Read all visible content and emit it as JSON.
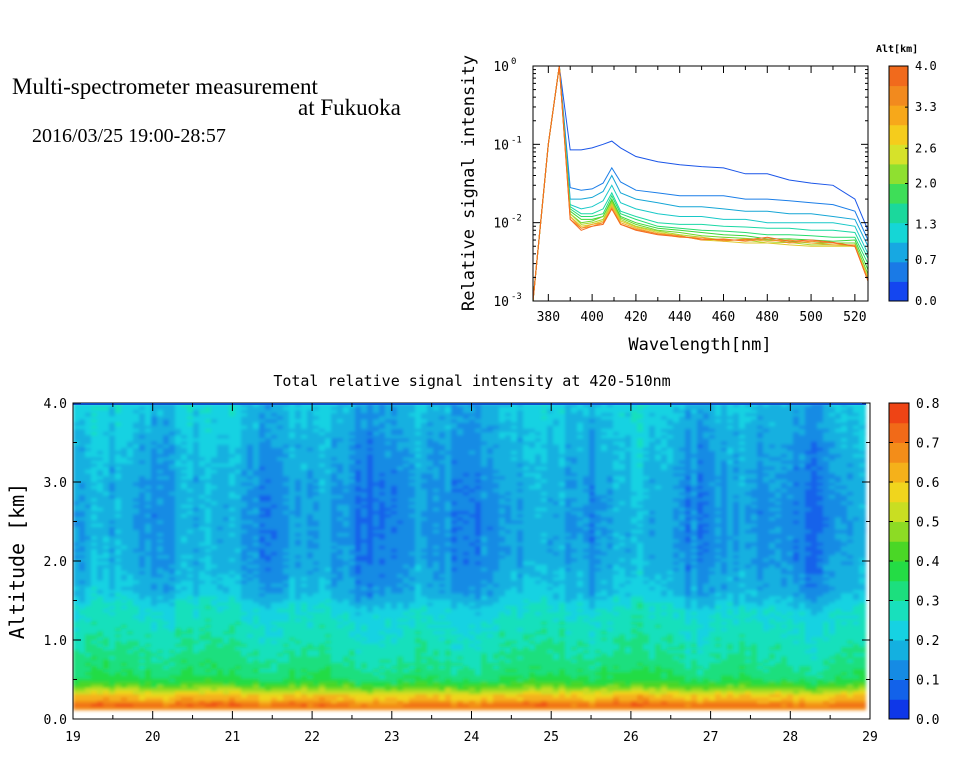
{
  "header": {
    "title_line1": "Multi-spectrometer measurement",
    "title_line2": "at Fukuoka",
    "datetime": "2016/03/25 19:00-28:57"
  },
  "chart_data": [
    {
      "type": "line",
      "title": "",
      "xlabel": "Wavelength[nm]",
      "ylabel": "Relative signal intensity",
      "xlim": [
        373,
        526
      ],
      "ylim": [
        0.001,
        1
      ],
      "yscale": "log",
      "xticks": [
        380,
        400,
        420,
        440,
        460,
        480,
        500,
        520
      ],
      "xtick_labels": [
        "380",
        "400",
        "420",
        "440",
        "460",
        "480",
        "500",
        "520"
      ],
      "ytick_labels": [
        {
          "base": "10",
          "exp": "-3"
        },
        {
          "base": "10",
          "exp": "-2"
        },
        {
          "base": "10",
          "exp": "-1"
        },
        {
          "base": "10",
          "exp": "0"
        }
      ],
      "x": [
        373,
        380,
        385,
        390,
        395,
        400,
        405,
        409,
        413,
        420,
        430,
        440,
        450,
        460,
        470,
        480,
        490,
        500,
        510,
        520,
        526
      ],
      "series": [
        {
          "alt": 0.0,
          "color": "#1a55e8",
          "values": [
            0.001,
            0.1,
            1.0,
            0.085,
            0.085,
            0.09,
            0.1,
            0.11,
            0.09,
            0.07,
            0.06,
            0.055,
            0.052,
            0.05,
            0.042,
            0.042,
            0.035,
            0.032,
            0.03,
            0.02,
            0.008
          ]
        },
        {
          "alt": 0.35,
          "color": "#1b7ee8",
          "values": [
            0.001,
            0.1,
            1.0,
            0.028,
            0.026,
            0.027,
            0.032,
            0.05,
            0.033,
            0.026,
            0.024,
            0.022,
            0.022,
            0.022,
            0.02,
            0.02,
            0.019,
            0.018,
            0.017,
            0.014,
            0.006
          ]
        },
        {
          "alt": 0.7,
          "color": "#16a6d6",
          "values": [
            0.001,
            0.1,
            1.0,
            0.02,
            0.02,
            0.021,
            0.025,
            0.04,
            0.024,
            0.02,
            0.018,
            0.016,
            0.016,
            0.015,
            0.014,
            0.014,
            0.013,
            0.013,
            0.012,
            0.011,
            0.005
          ]
        },
        {
          "alt": 1.0,
          "color": "#18c8c8",
          "values": [
            0.001,
            0.1,
            1.0,
            0.017,
            0.015,
            0.016,
            0.019,
            0.03,
            0.018,
            0.015,
            0.013,
            0.012,
            0.012,
            0.011,
            0.011,
            0.01,
            0.01,
            0.01,
            0.01,
            0.009,
            0.004
          ]
        },
        {
          "alt": 1.3,
          "color": "#1bd8a5",
          "values": [
            0.001,
            0.1,
            1.0,
            0.016,
            0.013,
            0.013,
            0.015,
            0.024,
            0.014,
            0.012,
            0.01,
            0.0095,
            0.0095,
            0.009,
            0.0088,
            0.0085,
            0.0085,
            0.008,
            0.008,
            0.0075,
            0.0035
          ]
        },
        {
          "alt": 1.65,
          "color": "#27dc6e",
          "values": [
            0.001,
            0.1,
            1.0,
            0.015,
            0.012,
            0.012,
            0.013,
            0.022,
            0.013,
            0.011,
            0.009,
            0.0085,
            0.008,
            0.0078,
            0.0075,
            0.007,
            0.007,
            0.0068,
            0.0065,
            0.0065,
            0.003
          ]
        },
        {
          "alt": 2.0,
          "color": "#3dd63a",
          "values": [
            0.001,
            0.1,
            1.0,
            0.014,
            0.011,
            0.011,
            0.012,
            0.02,
            0.012,
            0.01,
            0.0085,
            0.008,
            0.0075,
            0.007,
            0.0068,
            0.0062,
            0.0062,
            0.006,
            0.0058,
            0.006,
            0.0025
          ]
        },
        {
          "alt": 2.3,
          "color": "#6fd62a",
          "values": [
            0.001,
            0.1,
            1.0,
            0.013,
            0.01,
            0.0105,
            0.012,
            0.019,
            0.0115,
            0.0095,
            0.008,
            0.0075,
            0.0068,
            0.0065,
            0.0063,
            0.006,
            0.0058,
            0.0055,
            0.0055,
            0.0055,
            0.0022
          ]
        },
        {
          "alt": 2.65,
          "color": "#a8d82a",
          "values": [
            0.001,
            0.1,
            1.0,
            0.013,
            0.0095,
            0.01,
            0.011,
            0.018,
            0.011,
            0.009,
            0.0078,
            0.007,
            0.0065,
            0.006,
            0.006,
            0.0055,
            0.0056,
            0.0052,
            0.0052,
            0.005,
            0.002
          ]
        },
        {
          "alt": 3.0,
          "color": "#e0c92a",
          "values": [
            0.001,
            0.1,
            1.0,
            0.012,
            0.009,
            0.0095,
            0.0105,
            0.017,
            0.0105,
            0.0088,
            0.0075,
            0.0068,
            0.006,
            0.0058,
            0.0055,
            0.0055,
            0.0052,
            0.005,
            0.005,
            0.005,
            0.002
          ]
        },
        {
          "alt": 3.3,
          "color": "#f0a92a",
          "values": [
            0.001,
            0.1,
            1.0,
            0.012,
            0.0085,
            0.0095,
            0.01,
            0.016,
            0.01,
            0.0085,
            0.0072,
            0.0065,
            0.0065,
            0.0058,
            0.0062,
            0.0058,
            0.006,
            0.0055,
            0.0052,
            0.0052,
            0.0018
          ]
        },
        {
          "alt": 3.65,
          "color": "#f38a2a",
          "values": [
            0.001,
            0.1,
            1.0,
            0.011,
            0.0085,
            0.009,
            0.01,
            0.015,
            0.0095,
            0.0082,
            0.0072,
            0.0068,
            0.006,
            0.0062,
            0.0058,
            0.0062,
            0.0055,
            0.0058,
            0.0055,
            0.005,
            0.0018
          ]
        },
        {
          "alt": 4.0,
          "color": "#f46a20",
          "values": [
            0.001,
            0.1,
            1.0,
            0.011,
            0.008,
            0.009,
            0.0095,
            0.015,
            0.0095,
            0.008,
            0.007,
            0.0066,
            0.0062,
            0.006,
            0.006,
            0.0065,
            0.0058,
            0.006,
            0.0056,
            0.005,
            0.0018
          ]
        }
      ],
      "colorbar": {
        "label": "Alt[km]",
        "tick_labels": [
          "0.0",
          "0.7",
          "1.3",
          "2.0",
          "2.6",
          "3.3",
          "4.0"
        ],
        "range": [
          0,
          4.0
        ],
        "colors": [
          "#1446f0",
          "#1a7ae6",
          "#17a8e2",
          "#15d6d6",
          "#1bd89c",
          "#3ede58",
          "#8fe030",
          "#d6e22a",
          "#f5cc1c",
          "#f7a81a",
          "#f28a1e",
          "#f16a1c"
        ]
      }
    },
    {
      "type": "heatmap",
      "title": "Total relative signal intensity at 420-510nm",
      "xlabel": "",
      "ylabel": "Altitude [km]",
      "xlim": [
        19,
        29
      ],
      "ylim": [
        0,
        4.0
      ],
      "xtick_labels": [
        "19",
        "20",
        "21",
        "22",
        "23",
        "24",
        "25",
        "26",
        "27",
        "28",
        "29"
      ],
      "ytick_labels": [
        "0.0",
        "1.0",
        "2.0",
        "3.0",
        "4.0"
      ],
      "data_x_end": 28.95,
      "profile_altitudes": [
        0.0,
        0.15,
        0.2,
        0.25,
        0.3,
        0.35,
        0.4,
        0.5,
        0.6,
        0.8,
        1.0,
        1.2,
        1.4,
        1.6,
        2.0,
        2.5,
        3.0,
        3.5,
        4.0
      ],
      "profile_values": [
        0.0,
        0.75,
        0.7,
        0.62,
        0.6,
        0.52,
        0.45,
        0.36,
        0.33,
        0.3,
        0.28,
        0.26,
        0.24,
        0.18,
        0.15,
        0.14,
        0.15,
        0.17,
        0.2
      ],
      "colorbar": {
        "tick_labels": [
          "0.0",
          "0.1",
          "0.2",
          "0.3",
          "0.4",
          "0.5",
          "0.6",
          "0.7",
          "0.8"
        ],
        "range": [
          0,
          0.8
        ],
        "colors": [
          "#0e37e8",
          "#1262ea",
          "#158be4",
          "#14b0e0",
          "#16d2e2",
          "#18e0bc",
          "#1cdf7e",
          "#24dc45",
          "#4ad726",
          "#8ddb24",
          "#c9de22",
          "#f0d51d",
          "#f5b11a",
          "#f38d19",
          "#f16a18",
          "#ee4415"
        ]
      }
    }
  ]
}
